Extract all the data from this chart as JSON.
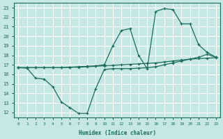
{
  "xlabel": "Humidex (Indice chaleur)",
  "bg_color": "#c5e8e5",
  "grid_color": "#ffffff",
  "line_color": "#1a6b5a",
  "xlim": [
    -0.5,
    23.5
  ],
  "ylim": [
    11.5,
    23.5
  ],
  "yticks": [
    12,
    13,
    14,
    15,
    16,
    17,
    18,
    19,
    20,
    21,
    22,
    23
  ],
  "xticks": [
    0,
    1,
    2,
    3,
    4,
    5,
    6,
    7,
    8,
    9,
    10,
    11,
    12,
    13,
    14,
    15,
    16,
    17,
    18,
    19,
    20,
    21,
    22,
    23
  ],
  "line1_x": [
    0,
    1,
    2,
    3,
    4,
    5,
    6,
    7,
    8,
    9,
    10,
    11,
    12,
    13,
    14,
    15,
    16,
    17,
    18,
    19,
    20,
    21,
    22,
    23
  ],
  "line1_y": [
    16.7,
    16.7,
    16.7,
    16.7,
    16.7,
    16.7,
    16.75,
    16.75,
    16.8,
    16.85,
    16.9,
    16.95,
    17.0,
    17.05,
    17.1,
    17.15,
    17.2,
    17.3,
    17.4,
    17.5,
    17.6,
    17.65,
    17.7,
    17.75
  ],
  "line2_x": [
    0,
    1,
    2,
    3,
    4,
    5,
    6,
    7,
    8,
    9,
    10,
    11,
    12,
    13,
    14,
    15,
    16,
    17,
    18,
    19,
    20,
    21,
    22,
    23
  ],
  "line2_y": [
    16.7,
    16.7,
    16.7,
    16.7,
    16.7,
    16.7,
    16.75,
    16.8,
    16.85,
    16.9,
    17.0,
    19.0,
    20.6,
    20.8,
    18.0,
    16.6,
    22.6,
    22.9,
    22.8,
    21.3,
    21.3,
    19.1,
    18.3,
    17.8
  ],
  "line3_x": [
    0,
    1,
    2,
    3,
    4,
    5,
    6,
    7,
    8,
    9,
    10,
    11,
    12,
    13,
    14,
    15,
    16,
    17,
    18,
    19,
    20,
    21,
    22,
    23
  ],
  "line3_y": [
    16.7,
    16.65,
    15.6,
    15.5,
    14.7,
    13.1,
    12.5,
    11.9,
    11.9,
    14.5,
    16.5,
    16.6,
    16.6,
    16.6,
    16.65,
    16.7,
    16.8,
    17.0,
    17.2,
    17.4,
    17.6,
    17.8,
    18.1,
    17.8
  ]
}
